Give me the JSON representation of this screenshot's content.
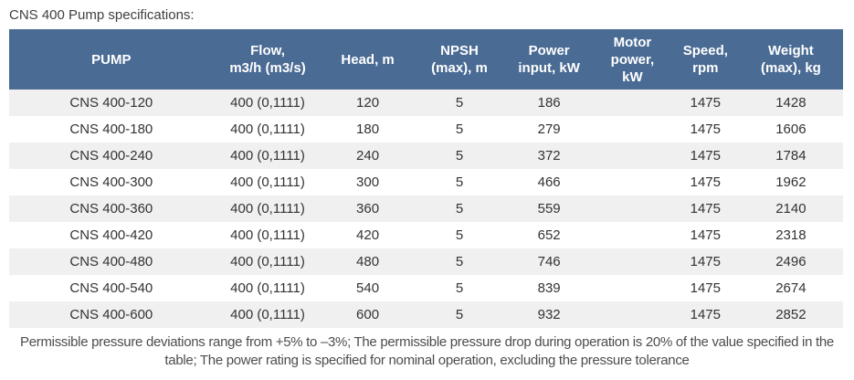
{
  "title": "CNS 400 Pump specifications:",
  "table": {
    "columns": [
      {
        "label": "PUMP"
      },
      {
        "label": "Flow,\nm3/h (m3/s)"
      },
      {
        "label": "Head, m"
      },
      {
        "label": "NPSH\n(max), m"
      },
      {
        "label": "Power\ninput, kW"
      },
      {
        "label": "Motor\npower,\nkW"
      },
      {
        "label": "Speed,\nrpm"
      },
      {
        "label": "Weight\n(max), kg"
      }
    ],
    "rows": [
      [
        "CNS 400-120",
        "400 (0,1111)",
        "120",
        "5",
        "186",
        "",
        "1475",
        "1428"
      ],
      [
        "CNS 400-180",
        "400 (0,1111)",
        "180",
        "5",
        "279",
        "",
        "1475",
        "1606"
      ],
      [
        "CNS 400-240",
        "400 (0,1111)",
        "240",
        "5",
        "372",
        "",
        "1475",
        "1784"
      ],
      [
        "CNS 400-300",
        "400 (0,1111)",
        "300",
        "5",
        "466",
        "",
        "1475",
        "1962"
      ],
      [
        "CNS 400-360",
        "400 (0,1111)",
        "360",
        "5",
        "559",
        "",
        "1475",
        "2140"
      ],
      [
        "CNS 400-420",
        "400 (0,1111)",
        "420",
        "5",
        "652",
        "",
        "1475",
        "2318"
      ],
      [
        "CNS 400-480",
        "400 (0,1111)",
        "480",
        "5",
        "746",
        "",
        "1475",
        "2496"
      ],
      [
        "CNS 400-540",
        "400 (0,1111)",
        "540",
        "5",
        "839",
        "",
        "1475",
        "2674"
      ],
      [
        "CNS 400-600",
        "400 (0,1111)",
        "600",
        "5",
        "932",
        "",
        "1475",
        "2852"
      ]
    ]
  },
  "footnote": "Permissible pressure deviations range from +5% to –3%; The permissible pressure drop during operation is 20% of the value specified in the table; The power rating is specified for nominal operation, excluding the pressure tolerance",
  "colors": {
    "header_bg": "#4a6b94",
    "header_text": "#ffffff",
    "row_stripe": "#f0f0f0",
    "row_bg": "#ffffff",
    "body_text": "#333333",
    "note_text": "#4d4d4d"
  }
}
